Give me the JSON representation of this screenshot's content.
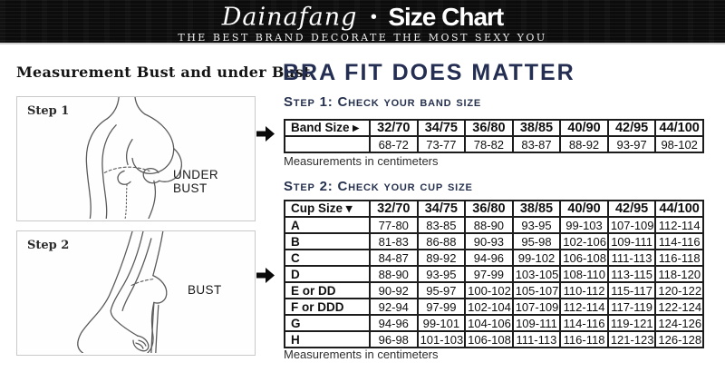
{
  "header": {
    "brand": "Dainafang",
    "bullet": "•",
    "title": "Size Chart",
    "tagline": "THE BEST BRAND DECORATE THE MOST SEXY YOU"
  },
  "left": {
    "heading": "Measurement Bust and under Bust",
    "steps": [
      {
        "label": "Step 1",
        "annotation": "UNDER BUST"
      },
      {
        "label": "Step 2",
        "annotation": "BUST"
      }
    ]
  },
  "right": {
    "title": "BRA FIT DOES MATTER",
    "step1_heading": "Step 1:  Check your band size",
    "step2_heading": "Step 2:  Check your cup size",
    "note1": "Measurements in centimeters",
    "note2": "Measurements in centimeters"
  },
  "colors": {
    "banner_bg": "#0c0c0c",
    "banner_text": "#ffffff",
    "heading_navy": "#232e52",
    "table_border": "#1c1c1c",
    "box_border": "#c9c9c9"
  },
  "chart_data": [
    {
      "type": "table",
      "title": "Step 1: Check your band size",
      "columns": [
        "Band Size ▸",
        "32/70",
        "34/75",
        "36/80",
        "38/85",
        "40/90",
        "42/95",
        "44/100"
      ],
      "rows": [
        [
          "",
          "68-72",
          "73-77",
          "78-82",
          "83-87",
          "88-92",
          "93-97",
          "98-102"
        ]
      ],
      "note": "Measurements in centimeters"
    },
    {
      "type": "table",
      "title": "Step 2: Check your cup size",
      "columns": [
        "Cup Size ▾",
        "32/70",
        "34/75",
        "36/80",
        "38/85",
        "40/90",
        "42/95",
        "44/100"
      ],
      "rows": [
        [
          "A",
          "77-80",
          "83-85",
          "88-90",
          "93-95",
          "99-103",
          "107-109",
          "112-114"
        ],
        [
          "B",
          "81-83",
          "86-88",
          "90-93",
          "95-98",
          "102-106",
          "109-111",
          "114-116"
        ],
        [
          "C",
          "84-87",
          "89-92",
          "94-96",
          "99-102",
          "106-108",
          "111-113",
          "116-118"
        ],
        [
          "D",
          "88-90",
          "93-95",
          "97-99",
          "103-105",
          "108-110",
          "113-115",
          "118-120"
        ],
        [
          "E or DD",
          "90-92",
          "95-97",
          "100-102",
          "105-107",
          "110-112",
          "115-117",
          "120-122"
        ],
        [
          "F or DDD",
          "92-94",
          "97-99",
          "102-104",
          "107-109",
          "112-114",
          "117-119",
          "122-124"
        ],
        [
          "G",
          "94-96",
          "99-101",
          "104-106",
          "109-111",
          "114-116",
          "119-121",
          "124-126"
        ],
        [
          "H",
          "96-98",
          "101-103",
          "106-108",
          "111-113",
          "116-118",
          "121-123",
          "126-128"
        ]
      ],
      "note": "Measurements in centimeters"
    }
  ]
}
